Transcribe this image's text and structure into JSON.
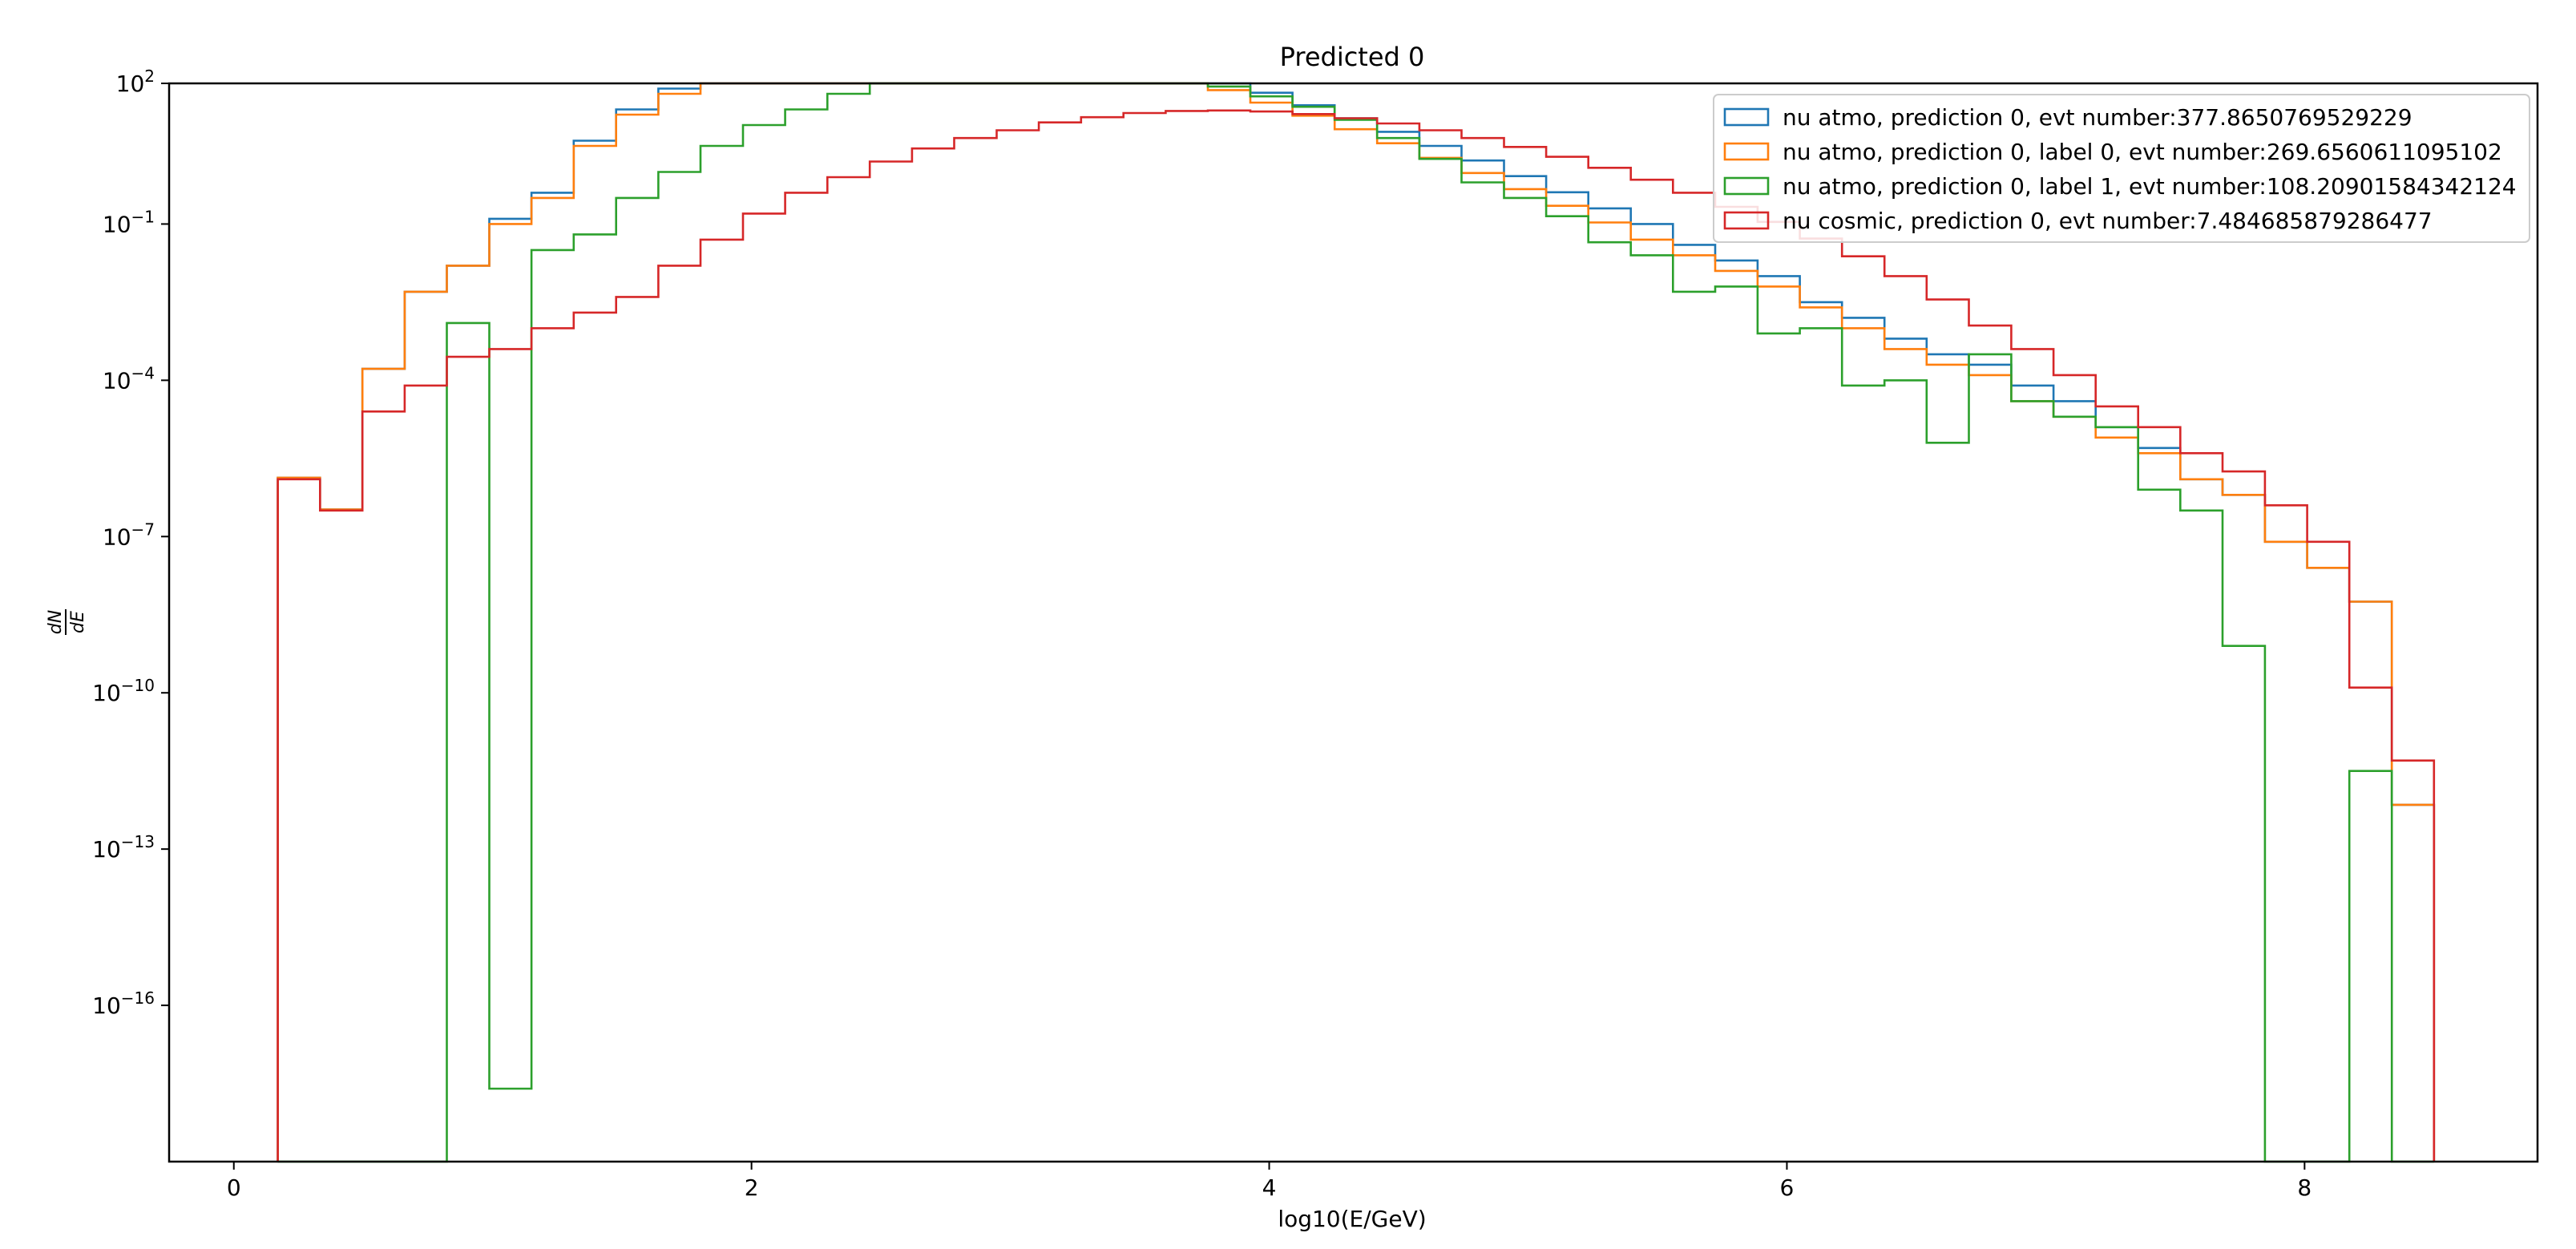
{
  "chart_data": {
    "type": "step-histogram",
    "title": "Predicted 0",
    "xlabel": "log10(E/GeV)",
    "ylabel_num": "dN",
    "ylabel_den": "dE",
    "xscale": "linear",
    "yscale": "log",
    "xlim": [
      -0.25,
      8.9
    ],
    "ylim_log10": [
      -19,
      1.7
    ],
    "xticks": [
      0,
      2,
      4,
      6,
      8
    ],
    "xtick_labels": [
      "0",
      "2",
      "4",
      "6",
      "8"
    ],
    "yticks_log10": [
      2,
      -1,
      -4,
      -7,
      -10,
      -13,
      -16
    ],
    "ytick_base": "10",
    "ytick_exponents": [
      "2",
      "−1",
      "−4",
      "−7",
      "−10",
      "−13",
      "−16"
    ],
    "grid": false,
    "legend_position": "upper right",
    "bin_edges": [
      0.17,
      0.333,
      0.497,
      0.66,
      0.823,
      0.987,
      1.15,
      1.313,
      1.477,
      1.64,
      1.803,
      1.967,
      2.13,
      2.293,
      2.457,
      2.62,
      2.783,
      2.947,
      3.11,
      3.273,
      3.437,
      3.6,
      3.763,
      3.927,
      4.09,
      4.253,
      4.417,
      4.58,
      4.743,
      4.907,
      5.07,
      5.233,
      5.397,
      5.56,
      5.723,
      5.887,
      6.05,
      6.213,
      6.377,
      6.54,
      6.703,
      6.867,
      7.03,
      7.193,
      7.357,
      7.52,
      7.683,
      7.847,
      8.01,
      8.173,
      8.337,
      8.5
    ],
    "series": [
      {
        "name": "nu atmo, prediction 0, evt number:377.8650769529229",
        "color": "#1f77b4",
        "log10_values": [
          -5.87,
          -6.48,
          -3.78,
          -2.3,
          -1.8,
          -0.9,
          -0.4,
          0.6,
          1.2,
          1.6,
          1.9,
          2.1,
          2.25,
          2.35,
          2.42,
          2.47,
          2.49,
          2.46,
          2.39,
          2.28,
          2.13,
          1.95,
          1.75,
          1.52,
          1.28,
          1.03,
          0.77,
          0.5,
          0.22,
          -0.08,
          -0.39,
          -0.7,
          -1.0,
          -1.4,
          -1.7,
          -2.0,
          -2.5,
          -2.8,
          -3.2,
          -3.5,
          -3.7,
          -4.1,
          -4.4,
          -4.9,
          -5.3,
          -5.9,
          -6.2,
          -7.1,
          -7.6,
          -8.25,
          -12.15,
          -13.17
        ],
        "comment": "log10_values: first 51 entries are bin heights; lengths aligned with bin_edges minus one"
      },
      {
        "name": "nu atmo, prediction 0, label 0, evt number:269.6560611095102",
        "color": "#ff7f0e",
        "log10_values": [
          -5.87,
          -6.48,
          -3.78,
          -2.3,
          -1.8,
          -1.0,
          -0.5,
          0.5,
          1.1,
          1.5,
          1.8,
          2.0,
          2.15,
          2.25,
          2.32,
          2.36,
          2.36,
          2.33,
          2.25,
          2.13,
          1.98,
          1.79,
          1.57,
          1.33,
          1.08,
          0.82,
          0.55,
          0.27,
          -0.02,
          -0.33,
          -0.65,
          -0.97,
          -1.3,
          -1.6,
          -1.9,
          -2.2,
          -2.6,
          -3.0,
          -3.4,
          -3.7,
          -3.9,
          -4.4,
          -4.7,
          -5.1,
          -5.4,
          -5.9,
          -6.2,
          -7.1,
          -7.6,
          -8.25,
          -12.15,
          -13.17
        ]
      },
      {
        "name": "nu atmo, prediction 0, label 1, evt number:108.20901584342124",
        "color": "#2ca02c",
        "log10_values": [
          -19,
          -19,
          -19,
          -19,
          -2.9,
          -17.6,
          -1.5,
          -1.2,
          -0.5,
          0.0,
          0.5,
          0.9,
          1.2,
          1.5,
          1.7,
          1.85,
          1.95,
          2.0,
          2.0,
          1.95,
          1.87,
          1.77,
          1.64,
          1.45,
          1.25,
          1.0,
          0.65,
          0.25,
          -0.2,
          -0.5,
          -0.85,
          -1.35,
          -1.6,
          -2.3,
          -2.2,
          -3.1,
          -3.0,
          -4.1,
          -4.0,
          -5.2,
          -3.5,
          -4.4,
          -4.7,
          -4.9,
          -6.1,
          -6.5,
          -9.1,
          -19,
          -19,
          -11.5,
          -19,
          -19
        ]
      },
      {
        "name": "nu cosmic, prediction 0, evt number:7.484685879286477",
        "color": "#d62728",
        "log10_values": [
          -5.9,
          -6.5,
          -4.6,
          -4.1,
          -3.55,
          -3.4,
          -3.0,
          -2.7,
          -2.4,
          -1.8,
          -1.3,
          -0.8,
          -0.4,
          -0.1,
          0.2,
          0.45,
          0.65,
          0.8,
          0.95,
          1.05,
          1.13,
          1.17,
          1.18,
          1.16,
          1.11,
          1.03,
          0.93,
          0.8,
          0.65,
          0.48,
          0.29,
          0.08,
          -0.15,
          -0.4,
          -0.67,
          -0.96,
          -1.28,
          -1.62,
          -2.0,
          -2.45,
          -2.95,
          -3.4,
          -3.9,
          -4.5,
          -4.9,
          -5.4,
          -5.75,
          -6.4,
          -7.1,
          -9.9,
          -11.3,
          -19
        ]
      }
    ]
  }
}
